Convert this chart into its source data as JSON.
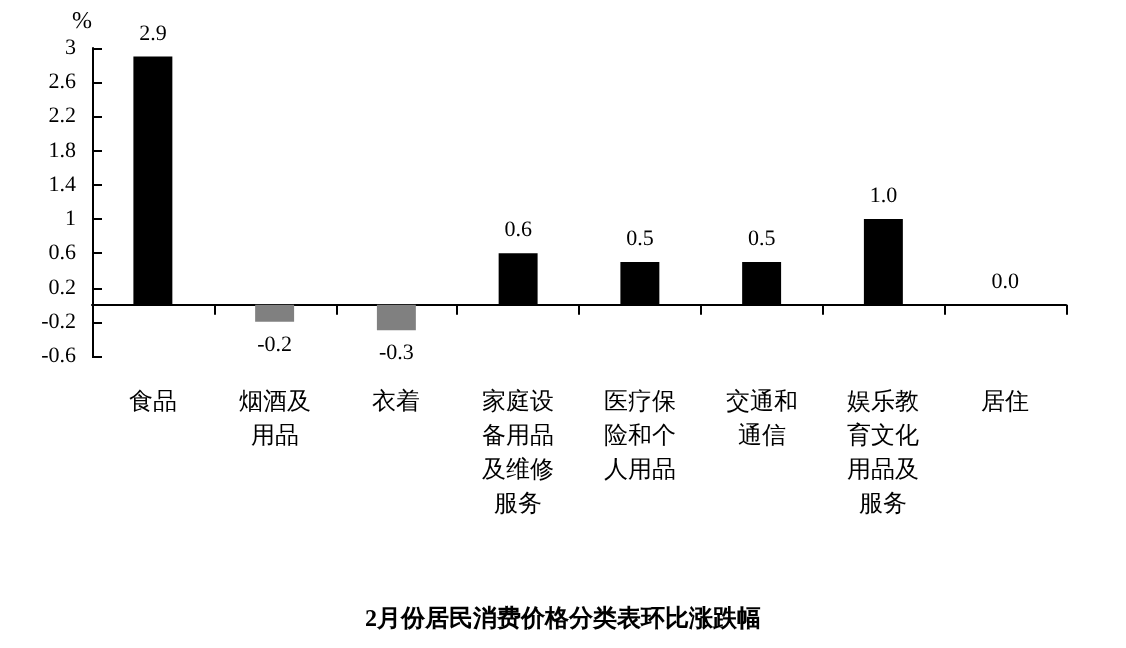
{
  "chart_data": {
    "type": "bar",
    "title": "2月份居民消费价格分类表环比涨跌幅",
    "ylabel": "%",
    "categories": [
      "食品",
      "烟酒及用品",
      "衣着",
      "家庭设备用品及维修服务",
      "医疗保险和个人用品",
      "交通和通信",
      "娱乐教育文化用品及服务",
      "居住"
    ],
    "values": [
      2.9,
      -0.2,
      -0.3,
      0.6,
      0.5,
      0.5,
      1.0,
      0.0
    ],
    "colors": [
      "#000000",
      "#808080",
      "#808080",
      "#000000",
      "#000000",
      "#000000",
      "#000000",
      "#000000"
    ],
    "value_labels": [
      "2.9",
      "-0.2",
      "-0.3",
      "0.6",
      "0.5",
      "0.5",
      "1.0",
      "0.0"
    ],
    "ylim": [
      -0.6,
      3
    ],
    "yticks": [
      -0.6,
      -0.2,
      0.2,
      0.6,
      1,
      1.4,
      1.8,
      2.2,
      2.6,
      3
    ],
    "grid": false
  }
}
